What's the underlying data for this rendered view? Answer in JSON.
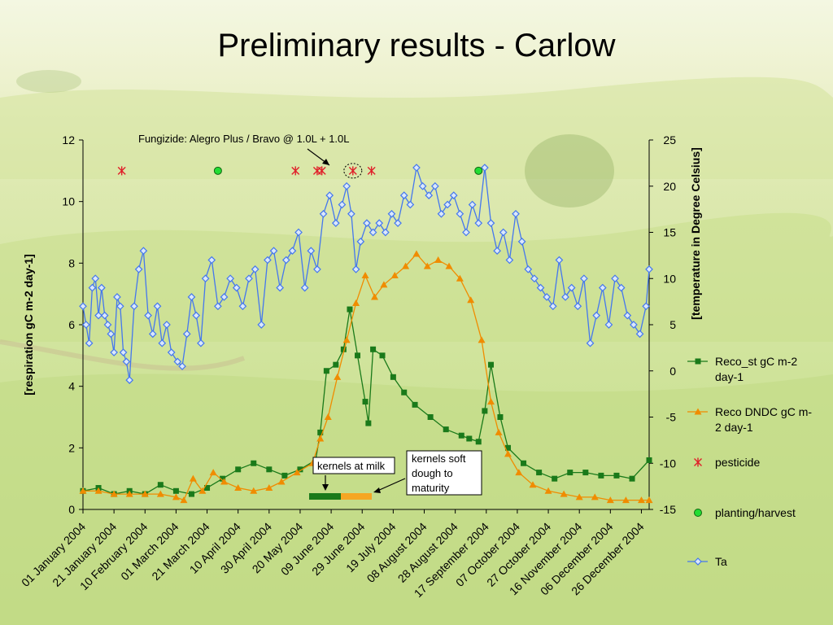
{
  "slide": {
    "title": "Preliminary results - Carlow"
  },
  "colors": {
    "reco_st": "#1a7a1a",
    "reco_dndc": "#f08c00",
    "pesticide": "#e0202a",
    "planting": "#22dd33",
    "ta": "#4477ee"
  },
  "chart_data": {
    "type": "line",
    "x_tick_labels": [
      "01 January 2004",
      "21 January 2004",
      "10 February 2004",
      "01 March 2004",
      "21 March 2004",
      "10 April 2004",
      "30 April 2004",
      "20 May 2004",
      "09 June 2004",
      "29 June 2004",
      "19 July 2004",
      "08 August 2004",
      "28 August 2004",
      "17 September 2004",
      "07 October 2004",
      "27 October 2004",
      "16 November 2004",
      "06 December 2004",
      "26 December 2004"
    ],
    "xlim": [
      "2004-01-01",
      "2004-12-31"
    ],
    "ylabel": "[respiration gC m-2 day-1]",
    "ylim": [
      0,
      12
    ],
    "yticks": [
      "0",
      "2",
      "4",
      "6",
      "8",
      "10",
      "12"
    ],
    "y2label": "[temperature in Degree Celsius]",
    "y2lim": [
      -15,
      25
    ],
    "y2ticks": [
      "-15",
      "-10",
      "-5",
      "0",
      "5",
      "10",
      "15",
      "20",
      "25"
    ],
    "legend_position": "right",
    "series": [
      {
        "name": "Reco_st gC m-2 day-1",
        "axis": "left",
        "marker": "square",
        "color": "#1a7a1a",
        "points": [
          [
            "2004-01-01",
            0.6
          ],
          [
            "2004-01-11",
            0.7
          ],
          [
            "2004-01-21",
            0.5
          ],
          [
            "2004-01-31",
            0.6
          ],
          [
            "2004-02-10",
            0.5
          ],
          [
            "2004-02-20",
            0.8
          ],
          [
            "2004-03-01",
            0.6
          ],
          [
            "2004-03-11",
            0.5
          ],
          [
            "2004-03-21",
            0.7
          ],
          [
            "2004-03-31",
            1.0
          ],
          [
            "2004-04-10",
            1.3
          ],
          [
            "2004-04-20",
            1.5
          ],
          [
            "2004-04-30",
            1.3
          ],
          [
            "2004-05-10",
            1.1
          ],
          [
            "2004-05-20",
            1.3
          ],
          [
            "2004-05-30",
            1.6
          ],
          [
            "2004-06-02",
            2.5
          ],
          [
            "2004-06-06",
            4.5
          ],
          [
            "2004-06-12",
            4.7
          ],
          [
            "2004-06-17",
            5.2
          ],
          [
            "2004-06-21",
            6.5
          ],
          [
            "2004-06-26",
            5.0
          ],
          [
            "2004-07-01",
            3.5
          ],
          [
            "2004-07-03",
            2.8
          ],
          [
            "2004-07-06",
            5.2
          ],
          [
            "2004-07-12",
            5.0
          ],
          [
            "2004-07-19",
            4.3
          ],
          [
            "2004-07-26",
            3.8
          ],
          [
            "2004-08-02",
            3.4
          ],
          [
            "2004-08-12",
            3.0
          ],
          [
            "2004-08-22",
            2.6
          ],
          [
            "2004-09-01",
            2.4
          ],
          [
            "2004-09-06",
            2.3
          ],
          [
            "2004-09-12",
            2.2
          ],
          [
            "2004-09-16",
            3.2
          ],
          [
            "2004-09-20",
            4.7
          ],
          [
            "2004-09-26",
            3.0
          ],
          [
            "2004-10-01",
            2.0
          ],
          [
            "2004-10-11",
            1.5
          ],
          [
            "2004-10-21",
            1.2
          ],
          [
            "2004-10-31",
            1.0
          ],
          [
            "2004-11-10",
            1.2
          ],
          [
            "2004-11-20",
            1.2
          ],
          [
            "2004-11-30",
            1.1
          ],
          [
            "2004-12-10",
            1.1
          ],
          [
            "2004-12-20",
            1.0
          ],
          [
            "2004-12-31",
            1.6
          ]
        ]
      },
      {
        "name": "Reco DNDC gC m-2 day-1",
        "axis": "left",
        "marker": "triangle",
        "color": "#f08c00",
        "points": [
          [
            "2004-01-01",
            0.6
          ],
          [
            "2004-01-11",
            0.6
          ],
          [
            "2004-01-21",
            0.5
          ],
          [
            "2004-01-31",
            0.5
          ],
          [
            "2004-02-10",
            0.5
          ],
          [
            "2004-02-20",
            0.5
          ],
          [
            "2004-03-01",
            0.4
          ],
          [
            "2004-03-06",
            0.3
          ],
          [
            "2004-03-12",
            1.0
          ],
          [
            "2004-03-18",
            0.6
          ],
          [
            "2004-03-25",
            1.2
          ],
          [
            "2004-04-01",
            0.9
          ],
          [
            "2004-04-10",
            0.7
          ],
          [
            "2004-04-20",
            0.6
          ],
          [
            "2004-04-30",
            0.7
          ],
          [
            "2004-05-08",
            0.9
          ],
          [
            "2004-05-18",
            1.2
          ],
          [
            "2004-05-28",
            1.5
          ],
          [
            "2004-06-02",
            2.3
          ],
          [
            "2004-06-07",
            3.0
          ],
          [
            "2004-06-13",
            4.3
          ],
          [
            "2004-06-19",
            5.5
          ],
          [
            "2004-06-25",
            6.7
          ],
          [
            "2004-07-01",
            7.6
          ],
          [
            "2004-07-07",
            6.9
          ],
          [
            "2004-07-13",
            7.3
          ],
          [
            "2004-07-20",
            7.6
          ],
          [
            "2004-07-27",
            7.9
          ],
          [
            "2004-08-03",
            8.3
          ],
          [
            "2004-08-10",
            7.9
          ],
          [
            "2004-08-17",
            8.1
          ],
          [
            "2004-08-24",
            7.9
          ],
          [
            "2004-08-31",
            7.5
          ],
          [
            "2004-09-07",
            6.8
          ],
          [
            "2004-09-14",
            5.5
          ],
          [
            "2004-09-20",
            3.5
          ],
          [
            "2004-09-25",
            2.5
          ],
          [
            "2004-10-01",
            1.8
          ],
          [
            "2004-10-08",
            1.2
          ],
          [
            "2004-10-17",
            0.8
          ],
          [
            "2004-10-27",
            0.6
          ],
          [
            "2004-11-06",
            0.5
          ],
          [
            "2004-11-16",
            0.4
          ],
          [
            "2004-11-26",
            0.4
          ],
          [
            "2004-12-06",
            0.3
          ],
          [
            "2004-12-16",
            0.3
          ],
          [
            "2004-12-26",
            0.3
          ],
          [
            "2004-12-31",
            0.3
          ]
        ]
      },
      {
        "name": "pesticide",
        "axis": "left",
        "marker": "asterisk",
        "color": "#e0202a",
        "points": [
          [
            "2004-01-26",
            11
          ],
          [
            "2004-05-17",
            11
          ],
          [
            "2004-05-31",
            11
          ],
          [
            "2004-06-03",
            11
          ],
          [
            "2004-06-23",
            11
          ],
          [
            "2004-07-05",
            11
          ]
        ]
      },
      {
        "name": "planting/harvest",
        "axis": "left",
        "marker": "circle",
        "color": "#22dd33",
        "points": [
          [
            "2004-03-28",
            11
          ],
          [
            "2004-09-12",
            11
          ]
        ]
      },
      {
        "name": "Ta",
        "axis": "right",
        "marker": "diamond",
        "color": "#4477ee",
        "points": [
          [
            "2004-01-01",
            7
          ],
          [
            "2004-01-03",
            5
          ],
          [
            "2004-01-05",
            3
          ],
          [
            "2004-01-07",
            9
          ],
          [
            "2004-01-09",
            10
          ],
          [
            "2004-01-11",
            6
          ],
          [
            "2004-01-13",
            9
          ],
          [
            "2004-01-15",
            6
          ],
          [
            "2004-01-17",
            5
          ],
          [
            "2004-01-19",
            4
          ],
          [
            "2004-01-21",
            2
          ],
          [
            "2004-01-23",
            8
          ],
          [
            "2004-01-25",
            7
          ],
          [
            "2004-01-27",
            2
          ],
          [
            "2004-01-29",
            1
          ],
          [
            "2004-01-31",
            -1
          ],
          [
            "2004-02-03",
            7
          ],
          [
            "2004-02-06",
            11
          ],
          [
            "2004-02-09",
            13
          ],
          [
            "2004-02-12",
            6
          ],
          [
            "2004-02-15",
            4
          ],
          [
            "2004-02-18",
            7
          ],
          [
            "2004-02-21",
            3
          ],
          [
            "2004-02-24",
            5
          ],
          [
            "2004-02-27",
            2
          ],
          [
            "2004-03-02",
            1
          ],
          [
            "2004-03-05",
            0.5
          ],
          [
            "2004-03-08",
            4
          ],
          [
            "2004-03-11",
            8
          ],
          [
            "2004-03-14",
            6
          ],
          [
            "2004-03-17",
            3
          ],
          [
            "2004-03-20",
            10
          ],
          [
            "2004-03-24",
            12
          ],
          [
            "2004-03-28",
            7
          ],
          [
            "2004-04-01",
            8
          ],
          [
            "2004-04-05",
            10
          ],
          [
            "2004-04-09",
            9
          ],
          [
            "2004-04-13",
            7
          ],
          [
            "2004-04-17",
            10
          ],
          [
            "2004-04-21",
            11
          ],
          [
            "2004-04-25",
            5
          ],
          [
            "2004-04-29",
            12
          ],
          [
            "2004-05-03",
            13
          ],
          [
            "2004-05-07",
            9
          ],
          [
            "2004-05-11",
            12
          ],
          [
            "2004-05-15",
            13
          ],
          [
            "2004-05-19",
            15
          ],
          [
            "2004-05-23",
            9
          ],
          [
            "2004-05-27",
            13
          ],
          [
            "2004-05-31",
            11
          ],
          [
            "2004-06-04",
            17
          ],
          [
            "2004-06-08",
            19
          ],
          [
            "2004-06-12",
            16
          ],
          [
            "2004-06-16",
            18
          ],
          [
            "2004-06-19",
            20
          ],
          [
            "2004-06-22",
            17
          ],
          [
            "2004-06-25",
            11
          ],
          [
            "2004-06-28",
            14
          ],
          [
            "2004-07-02",
            16
          ],
          [
            "2004-07-06",
            15
          ],
          [
            "2004-07-10",
            16
          ],
          [
            "2004-07-14",
            15
          ],
          [
            "2004-07-18",
            17
          ],
          [
            "2004-07-22",
            16
          ],
          [
            "2004-07-26",
            19
          ],
          [
            "2004-07-30",
            18
          ],
          [
            "2004-08-03",
            22
          ],
          [
            "2004-08-07",
            20
          ],
          [
            "2004-08-11",
            19
          ],
          [
            "2004-08-15",
            20
          ],
          [
            "2004-08-19",
            17
          ],
          [
            "2004-08-23",
            18
          ],
          [
            "2004-08-27",
            19
          ],
          [
            "2004-08-31",
            17
          ],
          [
            "2004-09-04",
            15
          ],
          [
            "2004-09-08",
            18
          ],
          [
            "2004-09-12",
            16
          ],
          [
            "2004-09-16",
            22
          ],
          [
            "2004-09-20",
            16
          ],
          [
            "2004-09-24",
            13
          ],
          [
            "2004-09-28",
            15
          ],
          [
            "2004-10-02",
            12
          ],
          [
            "2004-10-06",
            17
          ],
          [
            "2004-10-10",
            14
          ],
          [
            "2004-10-14",
            11
          ],
          [
            "2004-10-18",
            10
          ],
          [
            "2004-10-22",
            9
          ],
          [
            "2004-10-26",
            8
          ],
          [
            "2004-10-30",
            7
          ],
          [
            "2004-11-03",
            12
          ],
          [
            "2004-11-07",
            8
          ],
          [
            "2004-11-11",
            9
          ],
          [
            "2004-11-15",
            7
          ],
          [
            "2004-11-19",
            10
          ],
          [
            "2004-11-23",
            3
          ],
          [
            "2004-11-27",
            6
          ],
          [
            "2004-12-01",
            9
          ],
          [
            "2004-12-05",
            5
          ],
          [
            "2004-12-09",
            10
          ],
          [
            "2004-12-13",
            9
          ],
          [
            "2004-12-17",
            6
          ],
          [
            "2004-12-21",
            5
          ],
          [
            "2004-12-25",
            4
          ],
          [
            "2004-12-29",
            7
          ],
          [
            "2004-12-31",
            11
          ]
        ]
      }
    ],
    "annotations": {
      "fungicide": "Fungizide: Alegro Plus / Bravo  @ 1.0L + 1.0L",
      "kernels_milk": "kernels at milk",
      "kernels_soft_1": "kernels soft",
      "kernels_soft_2": "dough to",
      "kernels_soft_3": "maturity"
    },
    "legend": [
      {
        "lines": [
          "Reco_st gC m-2",
          "day-1"
        ],
        "marker": "square",
        "color": "#1a7a1a"
      },
      {
        "lines": [
          "Reco DNDC gC m-",
          "2 day-1"
        ],
        "marker": "triangle",
        "color": "#f08c00"
      },
      {
        "lines": [
          "pesticide"
        ],
        "marker": "asterisk",
        "color": "#e0202a"
      },
      {
        "lines": [
          "planting/harvest"
        ],
        "marker": "circle",
        "color": "#22dd33"
      },
      {
        "lines": [
          "Ta"
        ],
        "marker": "diamond",
        "color": "#4477ee"
      }
    ]
  }
}
